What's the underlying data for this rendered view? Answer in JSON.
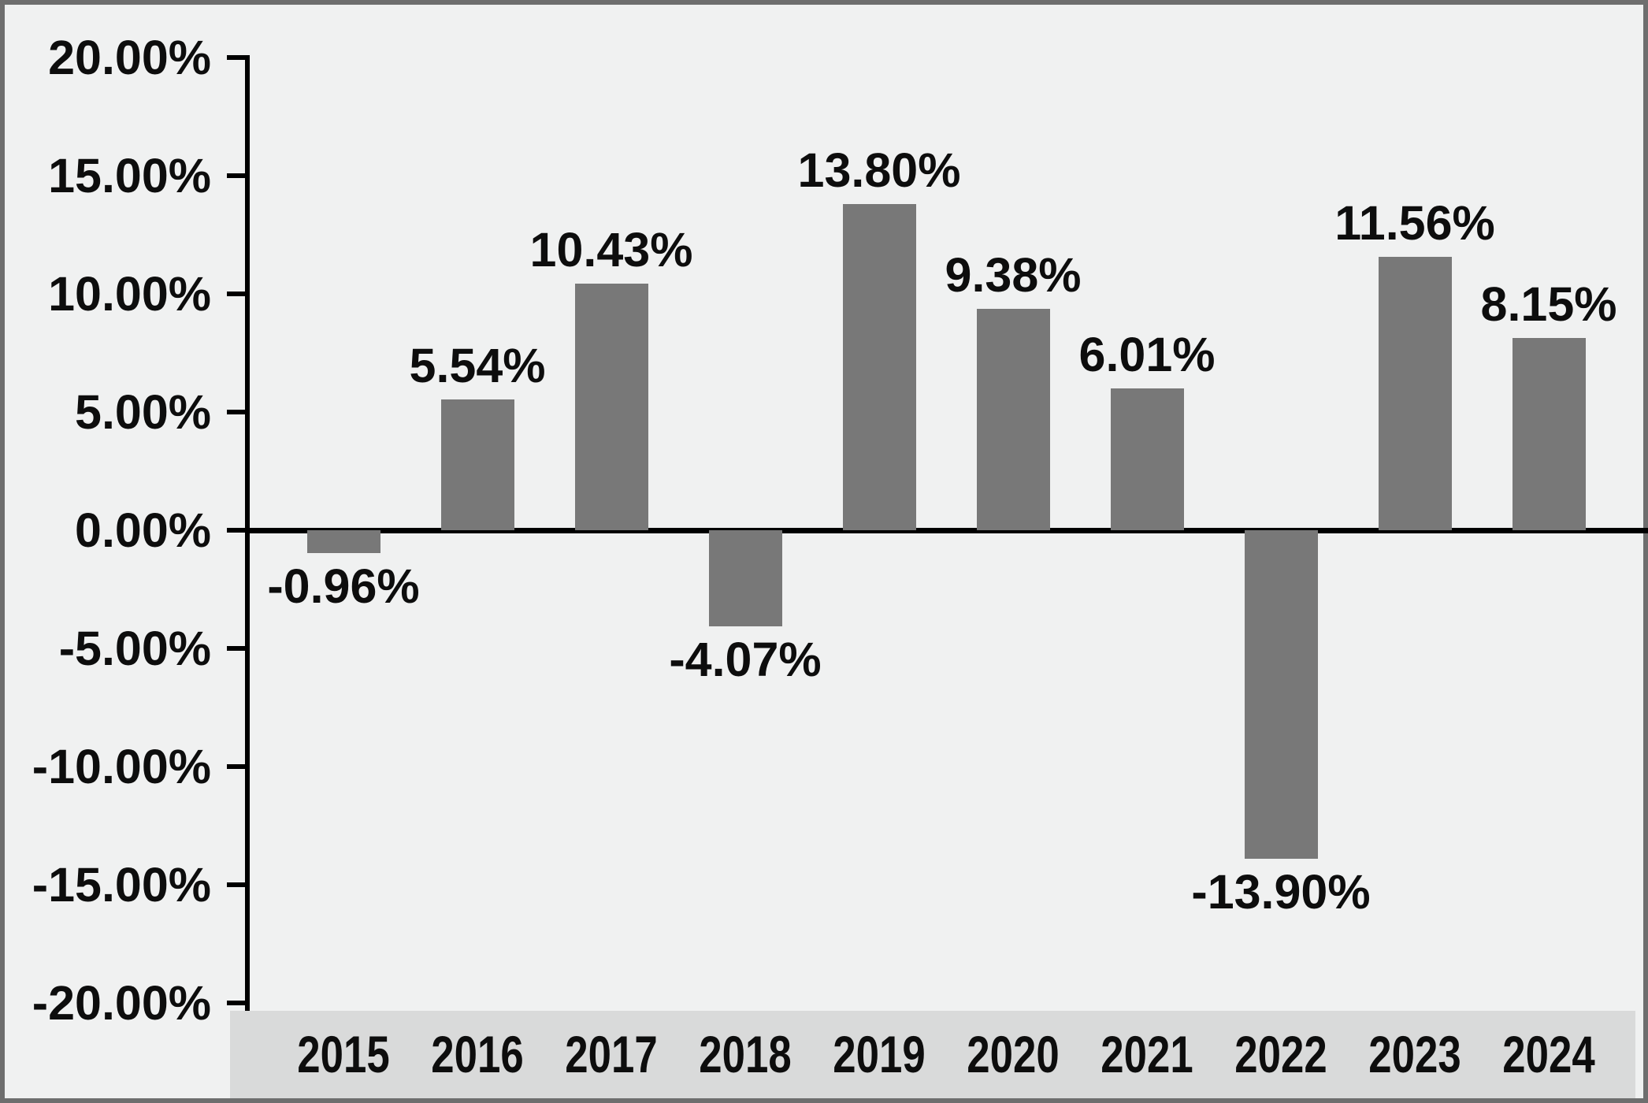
{
  "chart_data": {
    "type": "bar",
    "title": "",
    "xlabel": "",
    "ylabel": "",
    "categories": [
      "2015",
      "2016",
      "2017",
      "2018",
      "2019",
      "2020",
      "2021",
      "2022",
      "2023",
      "2024"
    ],
    "values": [
      -0.96,
      5.54,
      10.43,
      -4.07,
      13.8,
      9.38,
      6.01,
      -13.9,
      11.56,
      8.15
    ],
    "value_labels": [
      "-0.96%",
      "5.54%",
      "10.43%",
      "-4.07%",
      "13.80%",
      "9.38%",
      "6.01%",
      "-13.90%",
      "11.56%",
      "8.15%"
    ],
    "y_tick_labels": [
      "20.00%",
      "15.00%",
      "10.00%",
      "5.00%",
      "0.00%",
      "-5.00%",
      "-10.00%",
      "-15.00%",
      "-20.00%"
    ],
    "y_tick_values": [
      20,
      15,
      10,
      5,
      0,
      -5,
      -10,
      -15,
      -20
    ],
    "ylim": [
      -20,
      20
    ],
    "grid": "off",
    "legend": "none",
    "data_label_position": "outside-end"
  },
  "colors": {
    "background": "#f0f1f1",
    "category_strip": "#d9dada",
    "bar_fill": "#787878",
    "axis_line": "#000000",
    "text": "#0d0d0d",
    "outer_border": "#6e6e6e"
  }
}
